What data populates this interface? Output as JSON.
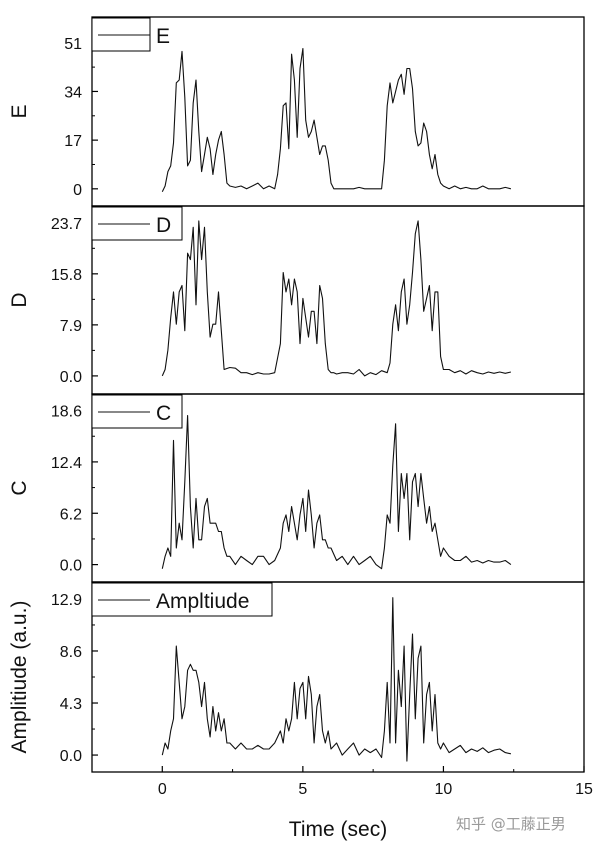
{
  "chart_data": {
    "type": "line",
    "xlabel": "Time (sec)",
    "xlim": [
      -2.5,
      15
    ],
    "xticks": [
      0,
      5,
      10,
      15
    ],
    "shared_x_axis": true,
    "panels": [
      {
        "ylabel": "E",
        "legend": "E",
        "legend_position": "top-left",
        "ylim": [
          -6,
          60
        ],
        "yticks": [
          0,
          17,
          34,
          51
        ],
        "ytick_labels": [
          "0",
          "17",
          "34",
          "51"
        ],
        "series": [
          {
            "x": [
              0.0,
              0.1,
              0.2,
              0.3,
              0.4,
              0.5,
              0.6,
              0.7,
              0.8,
              0.9,
              1.0,
              1.1,
              1.2,
              1.3,
              1.4,
              1.5,
              1.6,
              1.7,
              1.8,
              1.9,
              2.0,
              2.1,
              2.2,
              2.3,
              2.4,
              2.6,
              2.8,
              3.0,
              3.2,
              3.4,
              3.6,
              3.8,
              4.0,
              4.1,
              4.2,
              4.3,
              4.4,
              4.5,
              4.6,
              4.7,
              4.8,
              4.9,
              5.0,
              5.1,
              5.2,
              5.3,
              5.4,
              5.5,
              5.6,
              5.7,
              5.8,
              5.9,
              6.0,
              6.1,
              6.2,
              6.4,
              6.6,
              6.8,
              7.0,
              7.2,
              7.4,
              7.6,
              7.8,
              7.9,
              8.0,
              8.1,
              8.2,
              8.3,
              8.4,
              8.5,
              8.6,
              8.7,
              8.8,
              8.9,
              9.0,
              9.1,
              9.2,
              9.3,
              9.4,
              9.5,
              9.6,
              9.7,
              9.8,
              9.9,
              10.0,
              10.2,
              10.4,
              10.6,
              10.8,
              11.0,
              11.2,
              11.4,
              11.6,
              11.8,
              12.0,
              12.2,
              12.4
            ],
            "y": [
              -1,
              1,
              6,
              8,
              16,
              37,
              38,
              48,
              32,
              8,
              10,
              30,
              38,
              20,
              6,
              12,
              18,
              14,
              5,
              12,
              17,
              20,
              12,
              2,
              1,
              0.5,
              1,
              0,
              1,
              2,
              0,
              1,
              0,
              5,
              14,
              29,
              30,
              14,
              47,
              38,
              18,
              42,
              49,
              24,
              18,
              20,
              24,
              18,
              12,
              15,
              15,
              10,
              2,
              0,
              0,
              0,
              0,
              0,
              0.5,
              0,
              0,
              0,
              0,
              10,
              29,
              37,
              30,
              34,
              38,
              40,
              33,
              42,
              42,
              35,
              20,
              15,
              16,
              23,
              20,
              12,
              7,
              12,
              5,
              2,
              1,
              0,
              1,
              0,
              0.5,
              0,
              0,
              1,
              0,
              0,
              0,
              0.5,
              0
            ]
          }
        ]
      },
      {
        "ylabel": "D",
        "legend": "D",
        "legend_position": "top-left",
        "ylim": [
          -2.8,
          26.3
        ],
        "yticks": [
          0.0,
          7.9,
          15.8,
          23.7
        ],
        "ytick_labels": [
          "0.0",
          "7.9",
          "15.8",
          "23.7"
        ],
        "series": [
          {
            "x": [
              0.0,
              0.1,
              0.2,
              0.3,
              0.4,
              0.5,
              0.6,
              0.7,
              0.8,
              0.9,
              1.0,
              1.1,
              1.2,
              1.3,
              1.4,
              1.5,
              1.6,
              1.7,
              1.8,
              1.9,
              2.0,
              2.1,
              2.2,
              2.4,
              2.6,
              2.8,
              3.0,
              3.2,
              3.4,
              3.6,
              3.8,
              4.0,
              4.2,
              4.3,
              4.4,
              4.5,
              4.6,
              4.7,
              4.8,
              4.9,
              5.0,
              5.1,
              5.2,
              5.3,
              5.4,
              5.5,
              5.6,
              5.7,
              5.8,
              5.9,
              6.0,
              6.1,
              6.2,
              6.4,
              6.6,
              6.8,
              7.0,
              7.2,
              7.4,
              7.6,
              7.8,
              8.0,
              8.1,
              8.2,
              8.3,
              8.4,
              8.5,
              8.6,
              8.7,
              8.8,
              8.9,
              9.0,
              9.1,
              9.2,
              9.3,
              9.4,
              9.5,
              9.6,
              9.7,
              9.8,
              9.9,
              10.0,
              10.2,
              10.4,
              10.6,
              10.8,
              11.0,
              11.2,
              11.4,
              11.6,
              11.8,
              12.0,
              12.2,
              12.4
            ],
            "y": [
              0,
              1,
              4,
              9,
              13,
              8,
              13,
              14,
              7,
              19,
              18,
              23,
              11,
              24,
              18,
              23,
              13,
              6,
              8,
              8,
              13,
              7,
              1,
              1.3,
              1.2,
              0.5,
              0.5,
              0.2,
              0.5,
              0.3,
              0.3,
              0.5,
              5,
              16,
              13,
              15,
              11,
              15,
              13,
              5,
              12,
              9,
              6,
              10,
              10,
              5,
              14,
              12,
              5,
              1,
              0.5,
              0.5,
              0.3,
              0.5,
              0.5,
              0.3,
              1,
              0,
              0.5,
              0.2,
              0.8,
              0.5,
              2,
              8,
              11,
              7,
              13,
              15,
              8,
              11,
              16,
              22,
              24,
              18,
              10,
              12,
              14,
              7,
              13,
              13,
              3,
              1,
              1,
              0.5,
              0.8,
              0.3,
              0.8,
              0.5,
              0.3,
              0.6,
              0.4,
              0.6,
              0.4,
              0.6
            ]
          }
        ]
      },
      {
        "ylabel": "C",
        "legend": "C",
        "legend_position": "top-left",
        "ylim": [
          -2.1,
          20.6
        ],
        "yticks": [
          0.0,
          6.2,
          12.4,
          18.6
        ],
        "ytick_labels": [
          "0.0",
          "6.2",
          "12.4",
          "18.6"
        ],
        "series": [
          {
            "x": [
              0.0,
              0.1,
              0.2,
              0.3,
              0.4,
              0.5,
              0.6,
              0.7,
              0.8,
              0.9,
              1.0,
              1.1,
              1.2,
              1.3,
              1.4,
              1.5,
              1.6,
              1.7,
              1.8,
              1.9,
              2.0,
              2.1,
              2.2,
              2.3,
              2.4,
              2.6,
              2.8,
              3.0,
              3.2,
              3.4,
              3.6,
              3.8,
              4.0,
              4.2,
              4.3,
              4.4,
              4.5,
              4.6,
              4.7,
              4.8,
              4.9,
              5.0,
              5.1,
              5.2,
              5.3,
              5.4,
              5.5,
              5.6,
              5.7,
              5.8,
              5.9,
              6.0,
              6.2,
              6.4,
              6.6,
              6.8,
              7.0,
              7.2,
              7.4,
              7.6,
              7.8,
              7.9,
              8.0,
              8.1,
              8.2,
              8.3,
              8.4,
              8.5,
              8.6,
              8.7,
              8.8,
              8.9,
              9.0,
              9.1,
              9.2,
              9.3,
              9.4,
              9.5,
              9.6,
              9.7,
              9.8,
              9.9,
              10.0,
              10.2,
              10.4,
              10.6,
              10.8,
              11.0,
              11.2,
              11.4,
              11.6,
              11.8,
              12.0,
              12.2,
              12.4
            ],
            "y": [
              -0.5,
              1,
              2,
              1,
              15,
              2,
              5,
              3,
              10,
              18,
              7,
              2,
              8,
              3,
              3,
              7,
              8,
              5,
              5,
              5,
              4,
              4,
              2,
              1,
              1,
              0,
              1,
              0.5,
              0,
              1,
              1,
              0,
              0.5,
              2,
              5,
              6,
              4,
              7,
              5,
              3,
              6,
              8,
              4,
              9,
              6,
              2,
              5,
              6,
              3,
              3,
              2,
              2,
              0.5,
              1,
              0,
              1,
              0,
              0.5,
              1,
              0,
              -0.5,
              2,
              6,
              5,
              12,
              17,
              4,
              11,
              8,
              11,
              3,
              10,
              11,
              7,
              11,
              8,
              5,
              7,
              4,
              5,
              3,
              1,
              2,
              1,
              0.5,
              0.5,
              1,
              0.3,
              0.5,
              0.2,
              0.5,
              0.3,
              0.3,
              0.5,
              0
            ]
          }
        ]
      },
      {
        "ylabel": "Amplitiude (a.u.)",
        "legend": "Ampltiude",
        "legend_position": "top-left",
        "ylim": [
          -1.4,
          14.3
        ],
        "yticks": [
          0.0,
          4.3,
          8.6,
          12.9
        ],
        "ytick_labels": [
          "0.0",
          "4.3",
          "8.6",
          "12.9"
        ],
        "series": [
          {
            "x": [
              0.0,
              0.1,
              0.2,
              0.3,
              0.4,
              0.5,
              0.6,
              0.7,
              0.8,
              0.9,
              1.0,
              1.1,
              1.2,
              1.3,
              1.4,
              1.5,
              1.6,
              1.7,
              1.8,
              1.9,
              2.0,
              2.1,
              2.2,
              2.3,
              2.4,
              2.6,
              2.8,
              3.0,
              3.2,
              3.4,
              3.6,
              3.8,
              4.0,
              4.1,
              4.2,
              4.3,
              4.4,
              4.5,
              4.6,
              4.7,
              4.8,
              4.9,
              5.0,
              5.1,
              5.2,
              5.3,
              5.4,
              5.5,
              5.6,
              5.7,
              5.8,
              5.9,
              6.0,
              6.2,
              6.4,
              6.6,
              6.8,
              7.0,
              7.2,
              7.4,
              7.6,
              7.8,
              7.9,
              8.0,
              8.1,
              8.2,
              8.3,
              8.4,
              8.5,
              8.6,
              8.7,
              8.8,
              8.9,
              9.0,
              9.1,
              9.2,
              9.3,
              9.4,
              9.5,
              9.6,
              9.7,
              9.8,
              9.9,
              10.0,
              10.2,
              10.4,
              10.6,
              10.8,
              11.0,
              11.2,
              11.4,
              11.6,
              11.8,
              12.0,
              12.2,
              12.4
            ],
            "y": [
              0,
              1,
              0.5,
              2,
              3,
              9,
              6,
              3,
              4,
              7,
              7.5,
              7,
              7,
              6,
              4,
              6,
              3,
              1.5,
              4,
              2,
              3.5,
              2,
              3,
              1,
              1,
              0.5,
              1,
              0.5,
              0.5,
              0.8,
              0.5,
              0.5,
              1,
              1.5,
              2,
              1,
              3,
              2,
              3,
              6,
              3,
              5.5,
              6,
              3,
              6.5,
              5,
              1,
              4,
              5,
              2,
              1,
              2,
              0.5,
              1,
              0,
              0.5,
              1,
              0,
              0.5,
              0.2,
              0.5,
              -0.2,
              2,
              6,
              1,
              13,
              1,
              7,
              4,
              9,
              -0.5,
              5,
              10,
              3,
              8,
              9,
              1,
              5,
              6,
              2,
              5,
              1,
              0.5,
              1,
              0.2,
              0.5,
              0.8,
              0.2,
              0.5,
              0.3,
              0.6,
              0.2,
              0.4,
              0.5,
              0.2,
              0.1
            ]
          }
        ]
      }
    ]
  },
  "watermark": "知乎 @工藤正男"
}
